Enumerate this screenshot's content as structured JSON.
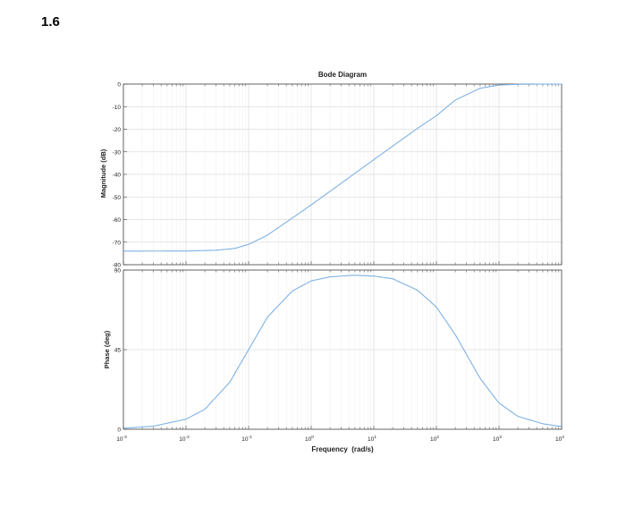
{
  "problem_number": "1.6",
  "chart_data": {
    "type": "line",
    "title": "Bode Diagram",
    "xlabel": "Frequency  (rad/s)",
    "x_scale": "log",
    "xlim": [
      0.001,
      10000
    ],
    "x_ticks": [
      {
        "value": 0.001,
        "base": "10",
        "exp": "-3"
      },
      {
        "value": 0.01,
        "base": "10",
        "exp": "-2"
      },
      {
        "value": 0.1,
        "base": "10",
        "exp": "-1"
      },
      {
        "value": 1,
        "base": "10",
        "exp": "0"
      },
      {
        "value": 10,
        "base": "10",
        "exp": "1"
      },
      {
        "value": 100,
        "base": "10",
        "exp": "2"
      },
      {
        "value": 1000,
        "base": "10",
        "exp": "3"
      },
      {
        "value": 10000,
        "base": "10",
        "exp": "4"
      }
    ],
    "grid": true,
    "line_color": "#7fb2e2",
    "magnitude": {
      "ylabel": "Magnitude (dB)",
      "ylim": [
        -80,
        0
      ],
      "yticks": [
        "0",
        "-10",
        "-20",
        "-30",
        "-40",
        "-50",
        "-60",
        "-70",
        "-80"
      ],
      "x": [
        0.001,
        0.01,
        0.03,
        0.06,
        0.1,
        0.2,
        0.5,
        1,
        2,
        5,
        10,
        20,
        50,
        100,
        200,
        500,
        1000,
        2000,
        5000,
        10000
      ],
      "y": [
        -73.98,
        -73.94,
        -73.6,
        -72.8,
        -71.0,
        -66.9,
        -59.3,
        -53.5,
        -47.5,
        -39.5,
        -33.5,
        -27.5,
        -19.6,
        -14.0,
        -7.1,
        -1.85,
        -0.43,
        -0.11,
        -0.02,
        0.0
      ]
    },
    "phase": {
      "ylabel": "Phase (deg)",
      "ylim": [
        0,
        90
      ],
      "yticks": [
        "90",
        "45",
        "0"
      ],
      "x": [
        0.001,
        0.003,
        0.01,
        0.02,
        0.05,
        0.1,
        0.2,
        0.5,
        1,
        2,
        5,
        10,
        20,
        50,
        100,
        200,
        500,
        1000,
        2000,
        5000,
        10000
      ],
      "y": [
        0.57,
        1.72,
        5.7,
        11.3,
        26.6,
        45.0,
        63.4,
        78.2,
        83.9,
        86.2,
        87.1,
        86.6,
        85.1,
        78.6,
        69.1,
        53.5,
        28.7,
        14.8,
        7.3,
        3.1,
        1.5
      ]
    }
  }
}
